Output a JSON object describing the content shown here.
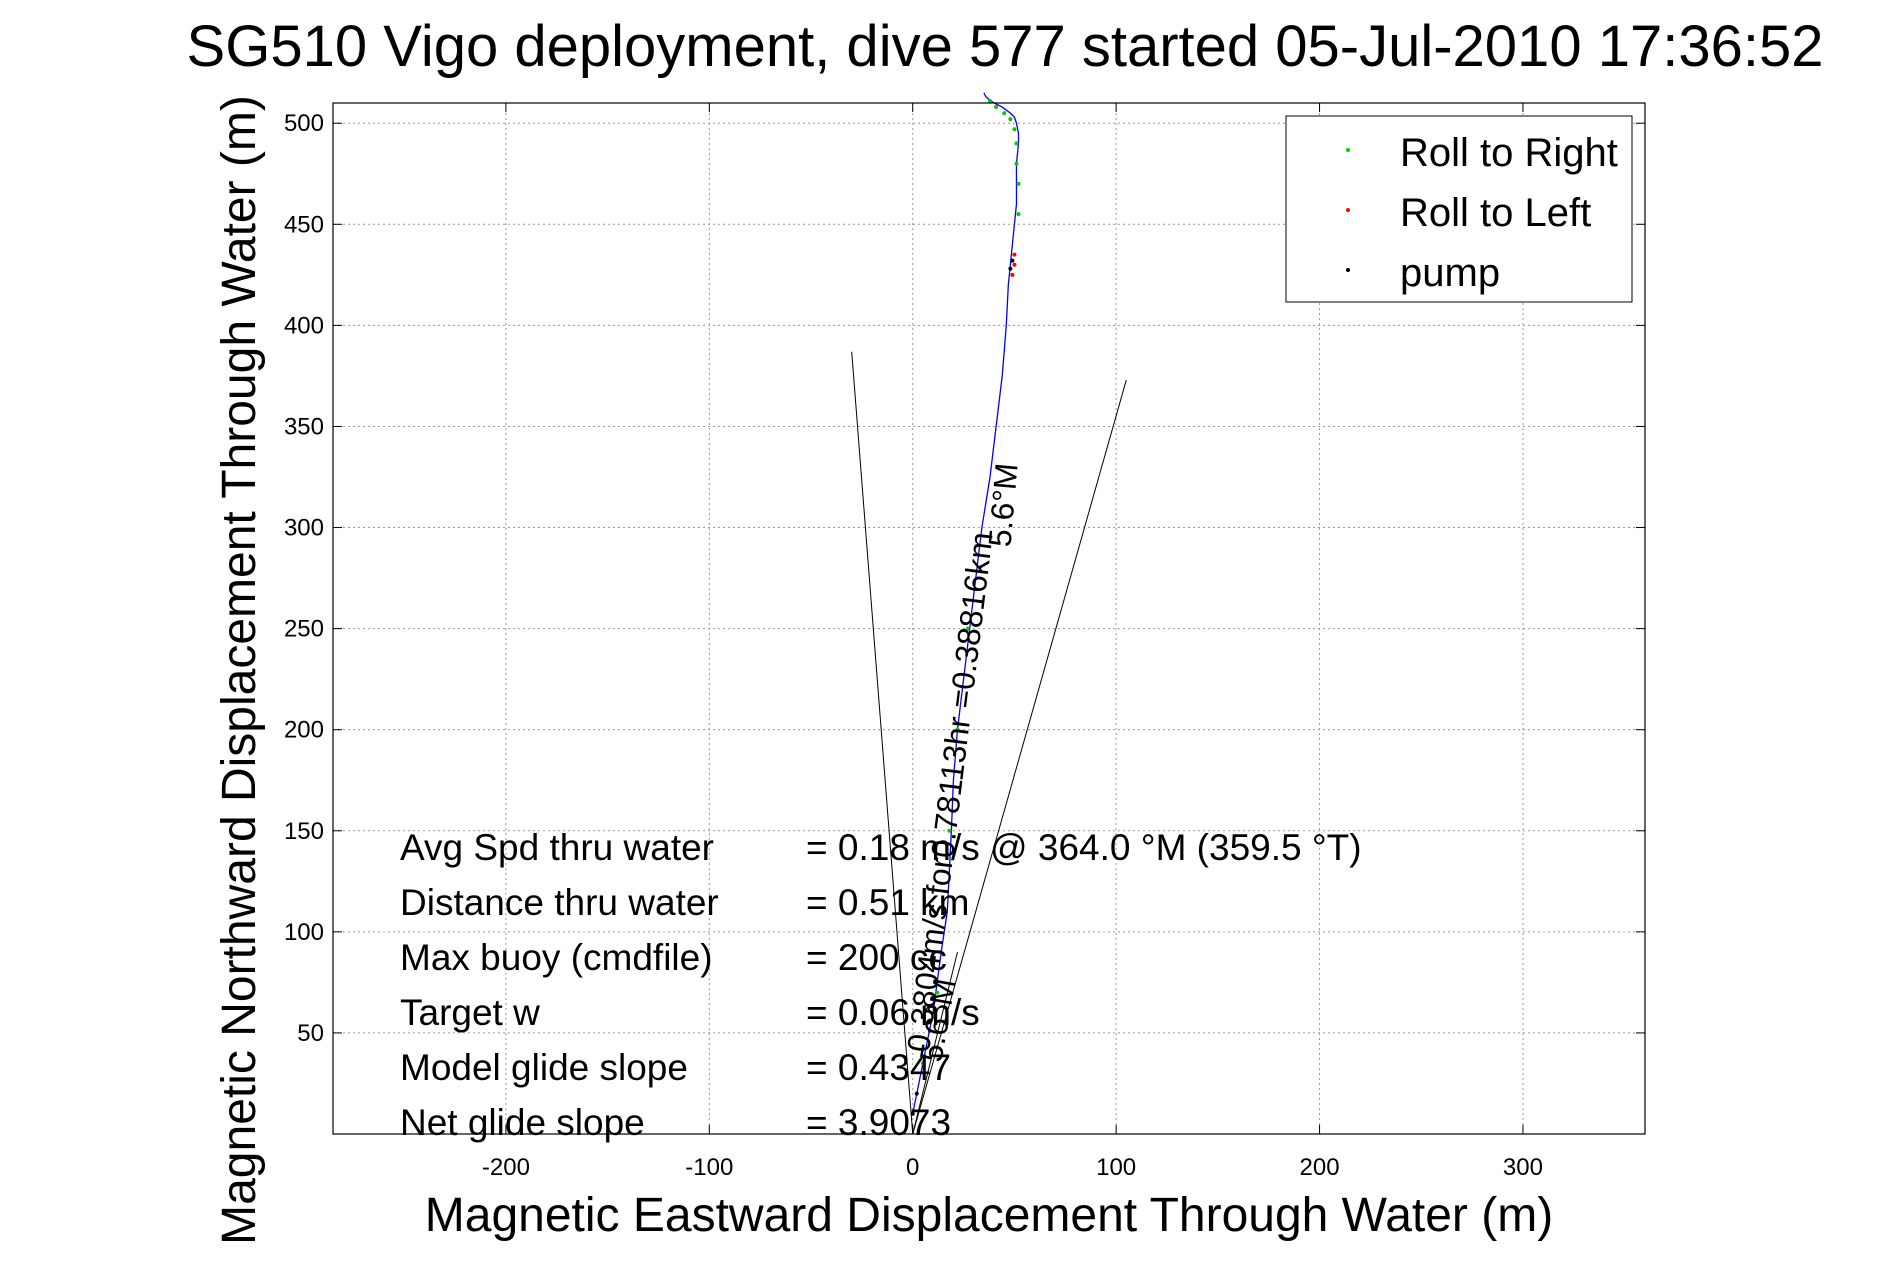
{
  "chart_data": {
    "type": "scatter",
    "title": "SG510 Vigo deployment, dive 577 started 05-Jul-2010 17:36:52",
    "xlabel": "Magnetic Eastward Displacement Through Water (m)",
    "ylabel": "Magnetic Northward Displacement Through Water (m)",
    "xlim": [
      -285,
      360
    ],
    "ylim": [
      0,
      510
    ],
    "xticks": [
      "-200",
      "-100",
      "0",
      "100",
      "200",
      "300"
    ],
    "xtick_values": [
      -200,
      -100,
      0,
      100,
      200,
      300
    ],
    "yticks": [
      "50",
      "100",
      "150",
      "200",
      "250",
      "300",
      "350",
      "400",
      "450",
      "500"
    ],
    "ytick_values": [
      50,
      100,
      150,
      200,
      250,
      300,
      350,
      400,
      450,
      500
    ],
    "grid": true,
    "legend_position": "top-right",
    "legend": [
      {
        "label": "Roll to Right",
        "color": "#00cc00"
      },
      {
        "label": "Roll to Left",
        "color": "#ff0000"
      },
      {
        "label": "pump",
        "color": "#000000"
      }
    ],
    "track": {
      "color": "#0000ff",
      "x": [
        0,
        4,
        10,
        14,
        17,
        18,
        19,
        20,
        22,
        25,
        28,
        31,
        34,
        38,
        41,
        44,
        46,
        47,
        48,
        49,
        50,
        51,
        51,
        51,
        52,
        52,
        51,
        50,
        48,
        44,
        40,
        36,
        35
      ],
      "y": [
        10,
        30,
        60,
        90,
        110,
        130,
        150,
        175,
        200,
        225,
        250,
        275,
        300,
        325,
        350,
        375,
        400,
        420,
        430,
        440,
        450,
        460,
        470,
        480,
        490,
        495,
        500,
        503,
        505,
        508,
        510,
        513,
        515
      ]
    },
    "roll_right_points": {
      "x": [
        5,
        12,
        18,
        22,
        27,
        52,
        52,
        51,
        51,
        50,
        48,
        45,
        41,
        38
      ],
      "y": [
        35,
        70,
        150,
        200,
        250,
        455,
        470,
        480,
        490,
        497,
        502,
        505,
        508,
        511
      ]
    },
    "roll_left_points": {
      "x": [
        49,
        50,
        50
      ],
      "y": [
        425,
        430,
        435
      ]
    },
    "pump_points": {
      "x": [
        0,
        2,
        48,
        49
      ],
      "y": [
        10,
        20,
        428,
        432
      ]
    },
    "heading_lines": [
      {
        "x": [
          0,
          -30
        ],
        "y": [
          0,
          387
        ]
      },
      {
        "x": [
          0,
          105
        ],
        "y": [
          0,
          373
        ]
      },
      {
        "x": [
          0,
          22
        ],
        "y": [
          0,
          90
        ]
      }
    ],
    "track_labels": [
      {
        "text": "0.3804m/s for0.78113hr =0.38816km",
        "x": 8,
        "y": 40,
        "angle": -83
      },
      {
        "text": "5.6°M",
        "x": 48,
        "y": 290,
        "angle": -85
      },
      {
        "text": "5.6°M",
        "x": 14,
        "y": 35,
        "angle": -80
      }
    ],
    "annotations": [
      {
        "label": "Avg Spd thru water",
        "value": "=  0.18 m/s @ 364.0 °M (359.5 °T)"
      },
      {
        "label": "Distance thru water",
        "value": "=  0.51 km"
      },
      {
        "label": "Max buoy (cmdfile)",
        "value": "= 200 cc"
      },
      {
        "label": "Target w",
        "value": "= 0.06 m/s"
      },
      {
        "label": "Model glide slope",
        "value": "= 0.4347"
      },
      {
        "label": "Net glide slope",
        "value": "= 3.9073"
      }
    ]
  }
}
